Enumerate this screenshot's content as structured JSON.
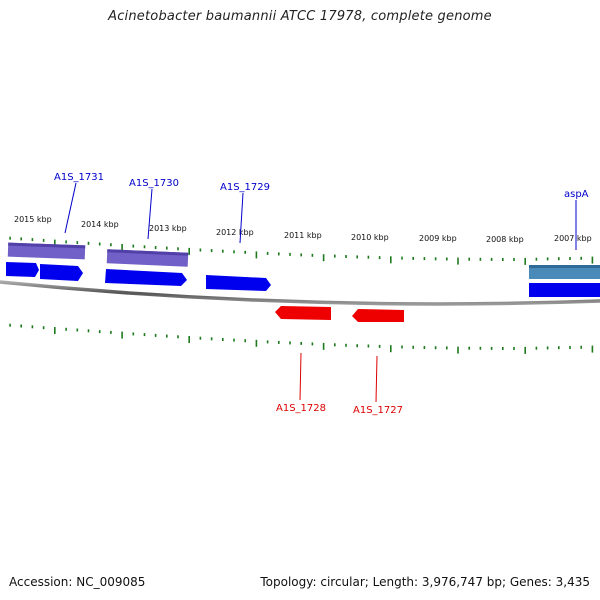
{
  "title": "Acinetobacter baumannii ATCC 17978, complete genome",
  "footer": {
    "accession": "Accession: NC_009085",
    "summary": "Topology: circular; Length: 3,976,747 bp; Genes: 3,435"
  },
  "colors": {
    "forward_gene": "#0000ee",
    "reverse_gene": "#ee0000",
    "forward_label": "#0000cc",
    "reverse_label": "#dd0000",
    "cds_feature": "#7060c8",
    "rna_feature": "#4a8ab8",
    "tick": "#1f7a1f",
    "backbone": "#777777"
  },
  "scale_labels": [
    "2015 kbp",
    "2014 kbp",
    "2013 kbp",
    "2012 kbp",
    "2011 kbp",
    "2010 kbp",
    "2009 kbp",
    "2008 kbp",
    "2007 kbp"
  ],
  "gene_labels": {
    "forward": [
      "A1S_1731",
      "A1S_1730",
      "A1S_1729",
      "aspA"
    ],
    "reverse": [
      "A1S_1728",
      "A1S_1727"
    ]
  }
}
